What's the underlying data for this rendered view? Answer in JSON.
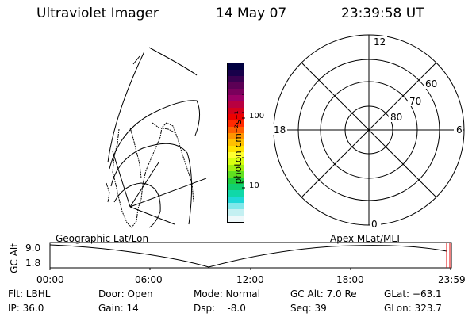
{
  "header": {
    "instrument": "Ultraviolet Imager",
    "date": "14 May 07",
    "time": "23:39:58 UT"
  },
  "colorbar": {
    "unit_label": "photon cm⁻²s⁻¹",
    "ticks": [
      "100",
      "10"
    ],
    "colors": [
      "#000040",
      "#18004a",
      "#3a0050",
      "#5c0055",
      "#7a005c",
      "#9a0066",
      "#b80040",
      "#d4001c",
      "#ee0000",
      "#ff2a00",
      "#ff6000",
      "#ff9400",
      "#ffc000",
      "#ffe400",
      "#ffff30",
      "#d8ff10",
      "#a0f010",
      "#60e020",
      "#20d040",
      "#10d070",
      "#10d8a8",
      "#20d8d8",
      "#80e8ea",
      "#c4f0f2",
      "#eef8fa"
    ]
  },
  "polar_plot": {
    "mlt_labels": {
      "top": "12",
      "bottom": "0",
      "left": "18",
      "right": "6"
    },
    "lat_labels": [
      "60",
      "70",
      "80"
    ]
  },
  "timeline": {
    "y_label": "GC Alt",
    "y_ticks": [
      "9.0",
      "1.8"
    ],
    "left_title": "Geographic Lat/Lon",
    "right_title": "Apex MLat/MLT",
    "time_ticks": [
      "00:00",
      "06:00",
      "12:00",
      "18:00",
      "23:59"
    ]
  },
  "status": {
    "flt": "Flt: LBHL",
    "ip": "IP: 36.0",
    "door": "Door: Open",
    "gain": "Gain: 14",
    "mode": "Mode: Normal",
    "dsp": "Dsp:    -8.0",
    "gc_alt": "GC Alt: 7.0 Re",
    "seq": "Seq: 39",
    "glat": "GLat: −63.1",
    "glon": "GLon: 323.7"
  }
}
